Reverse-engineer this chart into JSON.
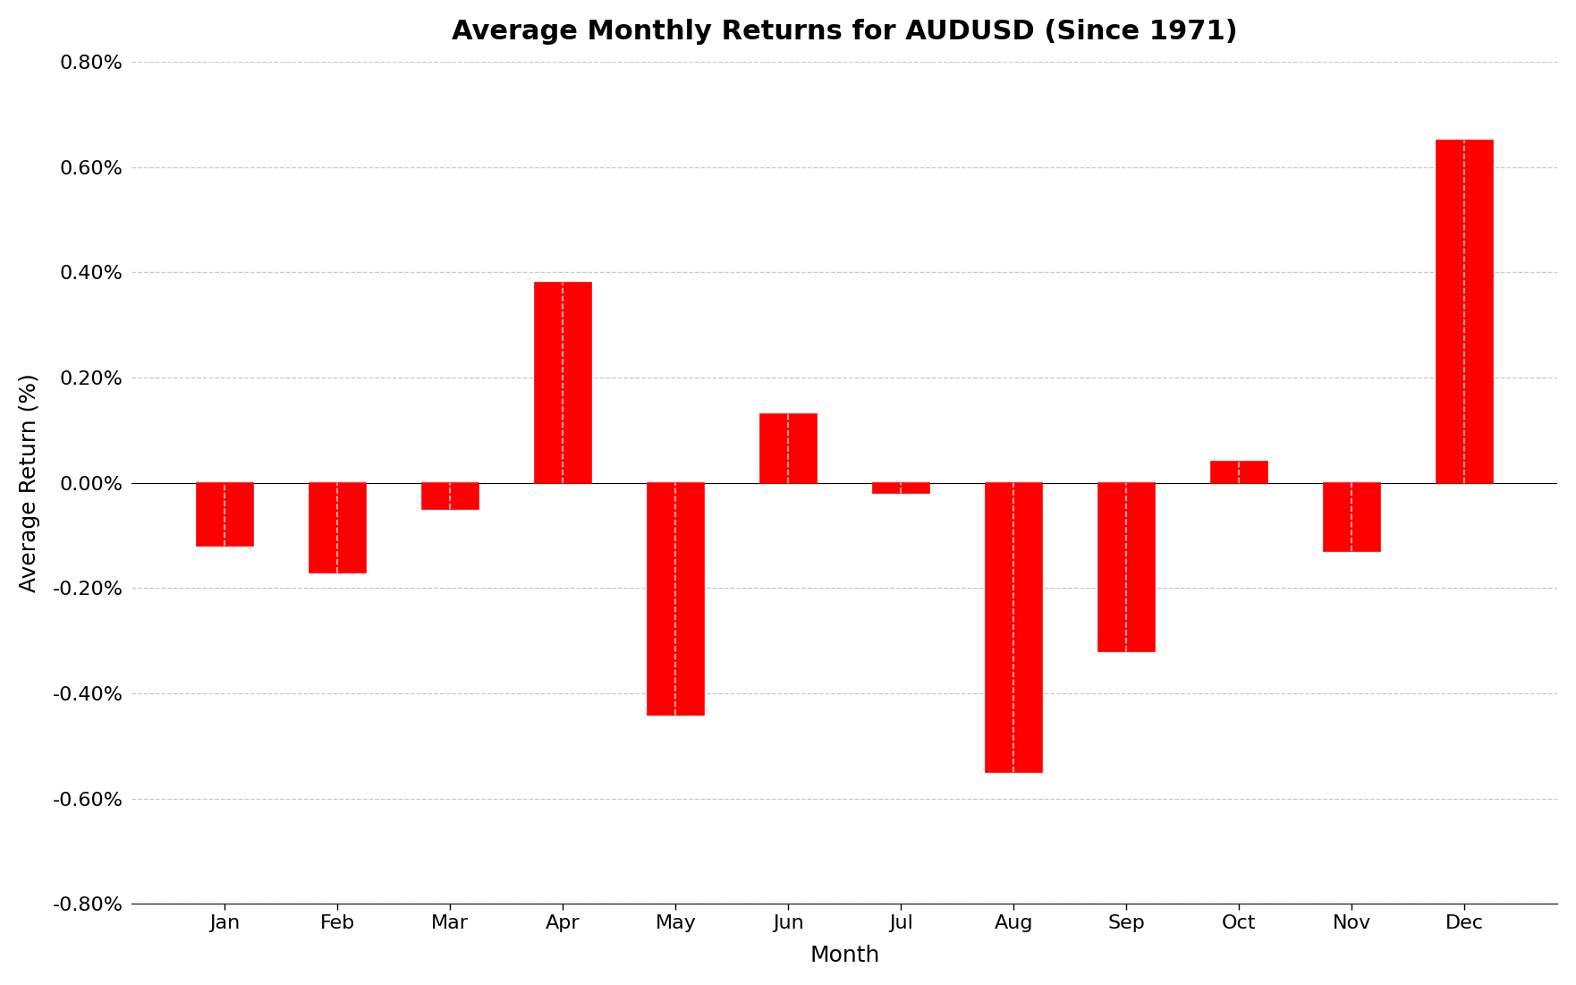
{
  "title": "Average Monthly Returns for AUDUSD (Since 1971)",
  "xlabel": "Month",
  "ylabel": "Average Return (%)",
  "categories": [
    "Jan",
    "Feb",
    "Mar",
    "Apr",
    "May",
    "Jun",
    "Jul",
    "Aug",
    "Sep",
    "Oct",
    "Nov",
    "Dec"
  ],
  "values": [
    -0.0012,
    -0.0017,
    -0.0005,
    0.0038,
    -0.0044,
    0.0013,
    -0.0002,
    -0.0055,
    -0.0032,
    0.0004,
    -0.0013,
    0.0065
  ],
  "bar_color": "#FF0000",
  "bar_edge_color": "#FF0000",
  "background_color": "#FFFFFF",
  "grid_color": "#C8C8C8",
  "title_fontsize": 22,
  "label_fontsize": 18,
  "tick_fontsize": 16,
  "ylim_low": -0.008,
  "ylim_high": 0.008,
  "ytick_vals": [
    -0.008,
    -0.006,
    -0.004,
    -0.002,
    0.0,
    0.002,
    0.004,
    0.006,
    0.008
  ]
}
